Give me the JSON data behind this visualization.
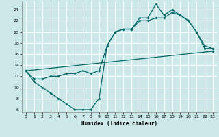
{
  "xlabel": "Humidex (Indice chaleur)",
  "bg_color": "#cce8e8",
  "grid_color": "#ffffff",
  "line_color": "#006666",
  "xlim": [
    -0.5,
    23.5
  ],
  "ylim": [
    5.5,
    25.5
  ],
  "xticks": [
    0,
    1,
    2,
    3,
    4,
    5,
    6,
    7,
    8,
    9,
    10,
    11,
    12,
    13,
    14,
    15,
    16,
    17,
    18,
    19,
    20,
    21,
    22,
    23
  ],
  "yticks": [
    6,
    8,
    10,
    12,
    14,
    16,
    18,
    20,
    22,
    24
  ],
  "line1_x": [
    0,
    1,
    2,
    3,
    4,
    5,
    6,
    7,
    8,
    9,
    10,
    11,
    12,
    13,
    14,
    15,
    16,
    17,
    18,
    19,
    20,
    21,
    22,
    23
  ],
  "line1_y": [
    13,
    11,
    10,
    9,
    8,
    7,
    6,
    6,
    6,
    8,
    17.5,
    20,
    20.5,
    20.5,
    22.5,
    22.5,
    25,
    23,
    24,
    23,
    22,
    20,
    17.5,
    17
  ],
  "line2_x": [
    0,
    1,
    2,
    3,
    4,
    5,
    6,
    7,
    8,
    9,
    10,
    11,
    12,
    13,
    14,
    15,
    16,
    17,
    18,
    19,
    20,
    21,
    22,
    23
  ],
  "line2_y": [
    13,
    11.5,
    11.5,
    12,
    12,
    12.5,
    12.5,
    13,
    12.5,
    13,
    17.5,
    20,
    20.5,
    20.5,
    22,
    22,
    22.5,
    22.5,
    23.5,
    23,
    22,
    20,
    17,
    17
  ],
  "line3_x": [
    0,
    23
  ],
  "line3_y": [
    13,
    16.5
  ],
  "figw": 3.2,
  "figh": 2.0,
  "dpi": 100
}
